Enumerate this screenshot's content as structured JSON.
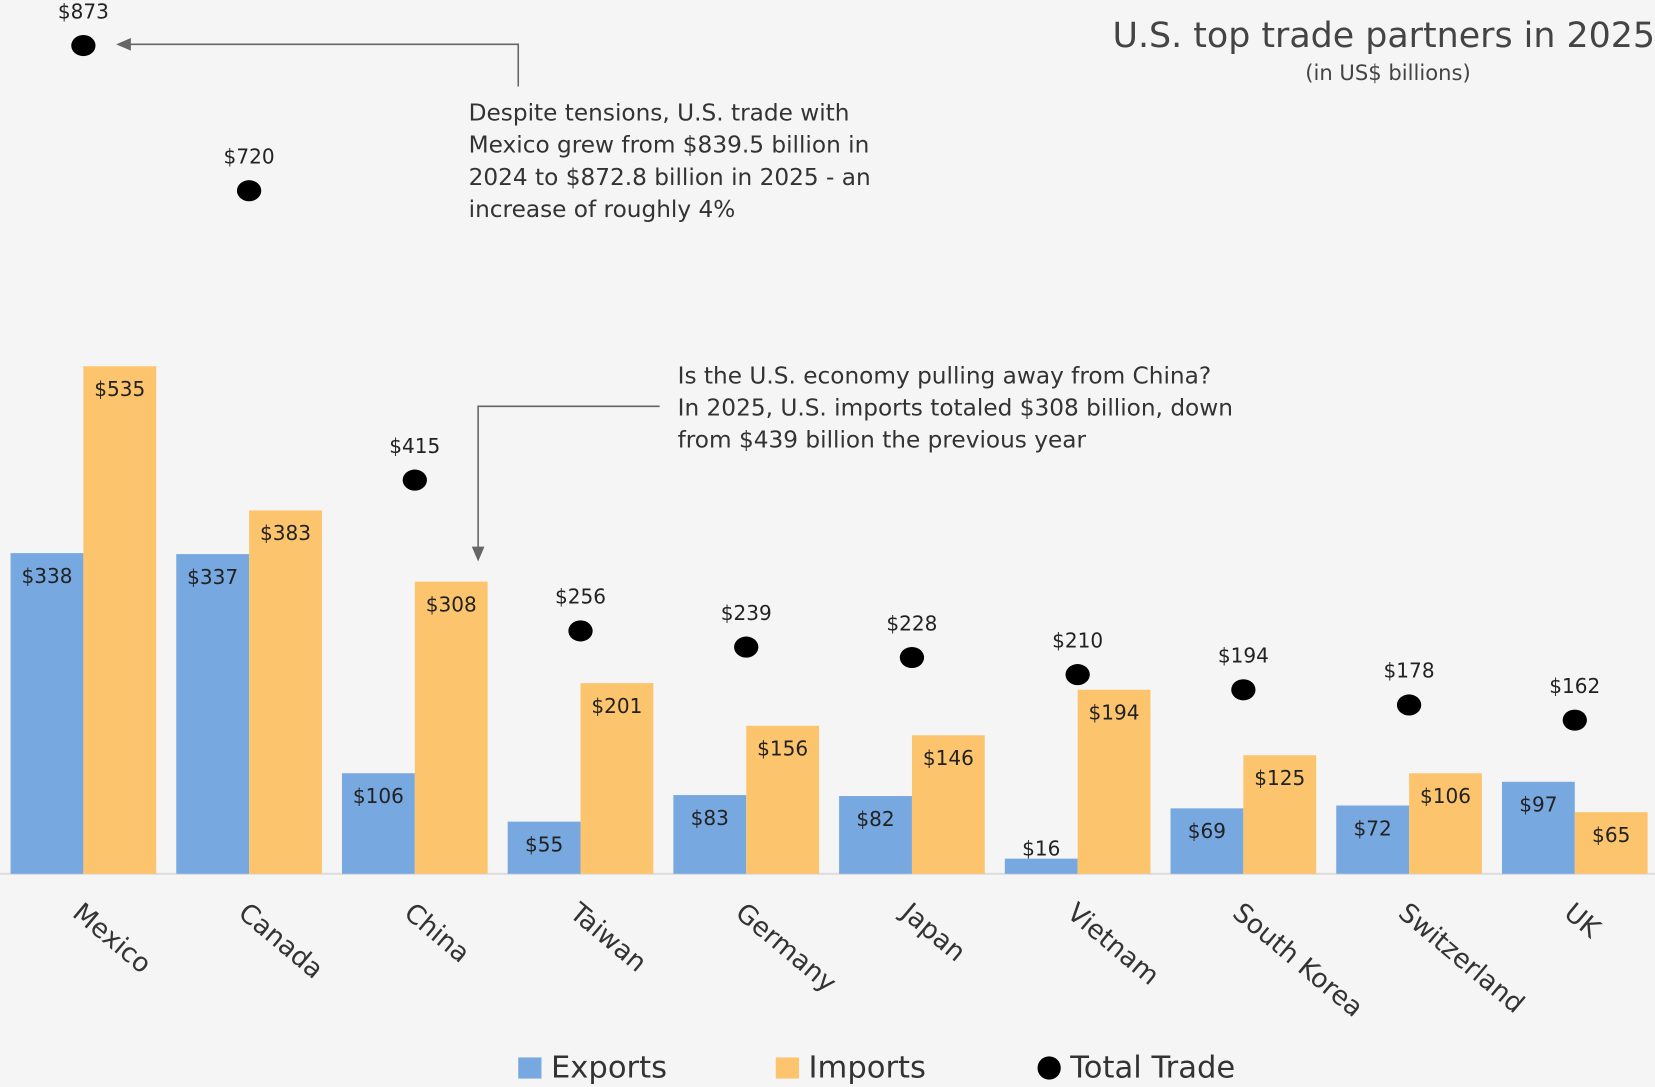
{
  "chart_data": {
    "type": "bar",
    "title": "U.S. top trade partners in 2025",
    "subtitle": "(in US$ billions)",
    "annotations": [
      [
        "Despite tensions, U.S. trade with",
        "Mexico grew from $839.5 billion in",
        "2024 to $872.8 billion in 2025 - an",
        "increase of roughly 4%"
      ],
      [
        "Is the U.S. economy pulling away from China?",
        "In 2025, U.S. imports totaled $308 billion, down",
        "from $439 billion the previous year"
      ]
    ],
    "categories": [
      "Mexico",
      "Canada",
      "China",
      "Taiwan",
      "Germany",
      "Japan",
      "Vietnam",
      "South Korea",
      "Switzerland",
      "UK"
    ],
    "series": [
      {
        "name": "Exports",
        "color": "#77a8e0",
        "values": [
          338,
          337,
          106,
          55,
          83,
          82,
          16,
          69,
          72,
          97
        ],
        "value_labels": [
          "$338",
          "$337",
          "$106",
          "$55",
          "$83",
          "$82",
          "$16",
          "$69",
          "$72",
          "$97"
        ]
      },
      {
        "name": "Imports",
        "color": "#fdc46e",
        "values": [
          535,
          383,
          308,
          201,
          156,
          146,
          194,
          125,
          106,
          65
        ],
        "value_labels": [
          "$535",
          "$383",
          "$308",
          "$201",
          "$156",
          "$146",
          "$194",
          "$125",
          "$106",
          "$65"
        ]
      },
      {
        "name": "Total Trade",
        "color": "#000000",
        "values": [
          873,
          720,
          415,
          256,
          239,
          228,
          210,
          194,
          178,
          162
        ],
        "value_labels": [
          "$873",
          "$720",
          "$415",
          "$256",
          "$239",
          "$228",
          "$210",
          "$194",
          "$178",
          "$162"
        ]
      }
    ],
    "ylim": [
      0,
      921
    ]
  }
}
